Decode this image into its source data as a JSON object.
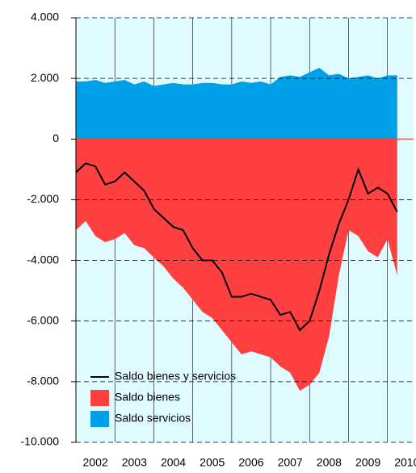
{
  "chart_data": {
    "type": "area",
    "x": [
      2002,
      2002.25,
      2002.5,
      2002.75,
      2003,
      2003.25,
      2003.5,
      2003.75,
      2004,
      2004.25,
      2004.5,
      2004.75,
      2005,
      2005.25,
      2005.5,
      2005.75,
      2006,
      2006.25,
      2006.5,
      2006.75,
      2007,
      2007.25,
      2007.5,
      2007.75,
      2008,
      2008.25,
      2008.5,
      2008.75,
      2009,
      2009.25,
      2009.5,
      2009.75,
      2010,
      2010.25
    ],
    "series": [
      {
        "name": "Saldo bienes y servicios",
        "type": "line",
        "color": "#000000",
        "values": [
          -1100,
          -800,
          -900,
          -1500,
          -1400,
          -1100,
          -1400,
          -1700,
          -2300,
          -2600,
          -2900,
          -3000,
          -3600,
          -4000,
          -4000,
          -4400,
          -5200,
          -5200,
          -5100,
          -5200,
          -5300,
          -5800,
          -5700,
          -6300,
          -6000,
          -5000,
          -3800,
          -2800,
          -2000,
          -1000,
          -1800,
          -1600,
          -1800,
          -2400
        ]
      },
      {
        "name": "Saldo bienes",
        "type": "area",
        "color": "#ff4040",
        "values": [
          -3000,
          -2700,
          -3200,
          -3400,
          -3300,
          -3100,
          -3500,
          -3600,
          -3900,
          -4200,
          -4600,
          -4900,
          -5300,
          -5700,
          -5900,
          -6300,
          -6700,
          -7100,
          -7000,
          -7100,
          -7200,
          -7500,
          -7700,
          -8300,
          -8100,
          -7700,
          -6500,
          -4500,
          -3000,
          -3200,
          -3700,
          -3900,
          -3300,
          -4500
        ]
      },
      {
        "name": "Saldo servicios",
        "type": "area",
        "color": "#00a0e8",
        "values": [
          1900,
          1900,
          1950,
          1850,
          1900,
          1950,
          1800,
          1900,
          1750,
          1800,
          1850,
          1800,
          1800,
          1850,
          1850,
          1800,
          1800,
          1900,
          1850,
          1900,
          1800,
          2050,
          2100,
          2050,
          2200,
          2350,
          2100,
          2150,
          2000,
          2050,
          2100,
          2000,
          2100,
          2100
        ]
      }
    ],
    "xlim": [
      2002,
      2010.67
    ],
    "xticks": [
      2002,
      2003,
      2004,
      2005,
      2006,
      2007,
      2008,
      2009,
      2010
    ],
    "ylim": [
      -10000,
      4000
    ],
    "yticks": [
      {
        "value": -10000,
        "label": "-10.000"
      },
      {
        "value": -8000,
        "label": "-8.000"
      },
      {
        "value": -6000,
        "label": "-6.000"
      },
      {
        "value": -4000,
        "label": "-4.000"
      },
      {
        "value": -2000,
        "label": "-2.000"
      },
      0,
      {
        "value": 2000,
        "label": "2.000"
      },
      {
        "value": 4000,
        "label": "4.000"
      }
    ],
    "grid": true,
    "background": "#e0fbff",
    "legend": "lower left"
  }
}
